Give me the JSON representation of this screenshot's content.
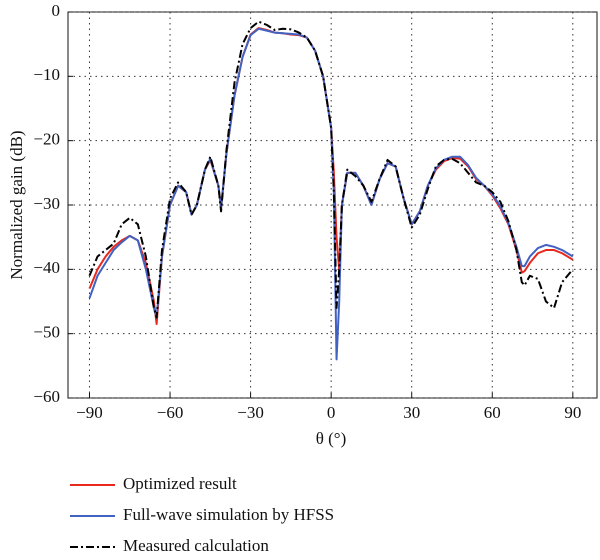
{
  "chart_data": {
    "type": "line",
    "x_label": "θ (°)",
    "y_label": "Normalized gain (dB)",
    "xlim": [
      -98,
      99
    ],
    "ylim": [
      -60,
      0
    ],
    "xticks": [
      {
        "value": -90,
        "label": "−90"
      },
      {
        "value": -60,
        "label": "−60"
      },
      {
        "value": -30,
        "label": "−30"
      },
      0,
      30,
      60,
      90
    ],
    "yticks": [
      0,
      {
        "value": -10,
        "label": "−10"
      },
      {
        "value": -20,
        "label": "−20"
      },
      {
        "value": -30,
        "label": "−30"
      },
      {
        "value": -40,
        "label": "−40"
      },
      {
        "value": -50,
        "label": "−50"
      },
      {
        "value": -60,
        "label": "−60"
      }
    ],
    "grid": true,
    "x": [
      -90,
      -87,
      -84,
      -81,
      -78,
      -75,
      -72,
      -69,
      -66,
      -65,
      -63,
      -60,
      -57,
      -54,
      -52,
      -50,
      -47,
      -45,
      -42,
      -41,
      -39,
      -36,
      -33,
      -30,
      -27,
      -24,
      -21,
      -18,
      -15,
      -12,
      -9,
      -6,
      -3,
      0,
      1,
      2,
      3,
      4,
      6,
      9,
      12,
      15,
      18,
      21,
      24,
      27,
      30,
      33,
      36,
      39,
      42,
      45,
      48,
      51,
      54,
      57,
      60,
      63,
      66,
      69,
      71,
      72,
      74,
      77,
      80,
      83,
      86,
      90
    ],
    "series": [
      {
        "name": "Optimized result",
        "color": "#e8281e",
        "linestyle": "solid",
        "values": [
          -43,
          -40,
          -38,
          -36.5,
          -35.5,
          -34.8,
          -35.5,
          -39,
          -45,
          -48.5,
          -38,
          -30,
          -27,
          -28,
          -31.5,
          -30,
          -24.5,
          -23,
          -27,
          -30.5,
          -22,
          -13,
          -7,
          -3.5,
          -2.5,
          -2.8,
          -3.2,
          -3.3,
          -3.5,
          -3.6,
          -4,
          -6,
          -10,
          -18,
          -25,
          -35,
          -40,
          -30,
          -25,
          -25,
          -27,
          -30,
          -26,
          -23.5,
          -24,
          -29,
          -33,
          -31,
          -27,
          -24.5,
          -23.2,
          -22.7,
          -22.8,
          -24,
          -26,
          -27,
          -28.5,
          -30.5,
          -33,
          -37,
          -40.5,
          -40.3,
          -39,
          -37.5,
          -37,
          -37,
          -37.5,
          -38.5
        ]
      },
      {
        "name": "Full-wave simulation by HFSS",
        "color": "#4262c2",
        "linestyle": "solid",
        "values": [
          -44.5,
          -41,
          -39,
          -37,
          -35.8,
          -34.8,
          -35.5,
          -40,
          -46,
          -47.5,
          -38,
          -30,
          -27,
          -28,
          -31.5,
          -30,
          -24.5,
          -22.8,
          -27,
          -30.5,
          -22,
          -13,
          -7,
          -3.6,
          -2.6,
          -2.9,
          -3.2,
          -3.3,
          -3.4,
          -3.5,
          -4,
          -6,
          -10,
          -18,
          -28,
          -54,
          -45,
          -30,
          -25,
          -25,
          -27,
          -30,
          -26,
          -23.5,
          -24,
          -29,
          -33,
          -31,
          -27,
          -24.3,
          -23,
          -22.5,
          -22.5,
          -23.8,
          -25.8,
          -27,
          -28.3,
          -30.2,
          -32.8,
          -36.5,
          -39.5,
          -39.5,
          -38,
          -36.7,
          -36.2,
          -36.5,
          -37,
          -38
        ]
      },
      {
        "name": "Measured calculation",
        "color": "#000000",
        "linestyle": "dash-dot",
        "values": [
          -41,
          -38,
          -37,
          -36,
          -33,
          -32,
          -33,
          -38,
          -46,
          -47.5,
          -37,
          -29,
          -26.5,
          -28,
          -31.5,
          -30,
          -24.5,
          -22.5,
          -27,
          -31,
          -21.5,
          -11,
          -5,
          -2.5,
          -1.5,
          -2,
          -2.8,
          -2.6,
          -2.7,
          -3.2,
          -4,
          -6,
          -10,
          -18,
          -28,
          -46,
          -40,
          -30,
          -24.5,
          -25.5,
          -27,
          -29.5,
          -26,
          -23,
          -24,
          -29,
          -33.5,
          -31.5,
          -27.5,
          -24,
          -23,
          -22.8,
          -23.5,
          -25,
          -26.5,
          -27,
          -28,
          -29.5,
          -32.5,
          -37,
          -42,
          -42.5,
          -41,
          -41.5,
          -45,
          -46,
          -42,
          -40
        ]
      }
    ]
  }
}
